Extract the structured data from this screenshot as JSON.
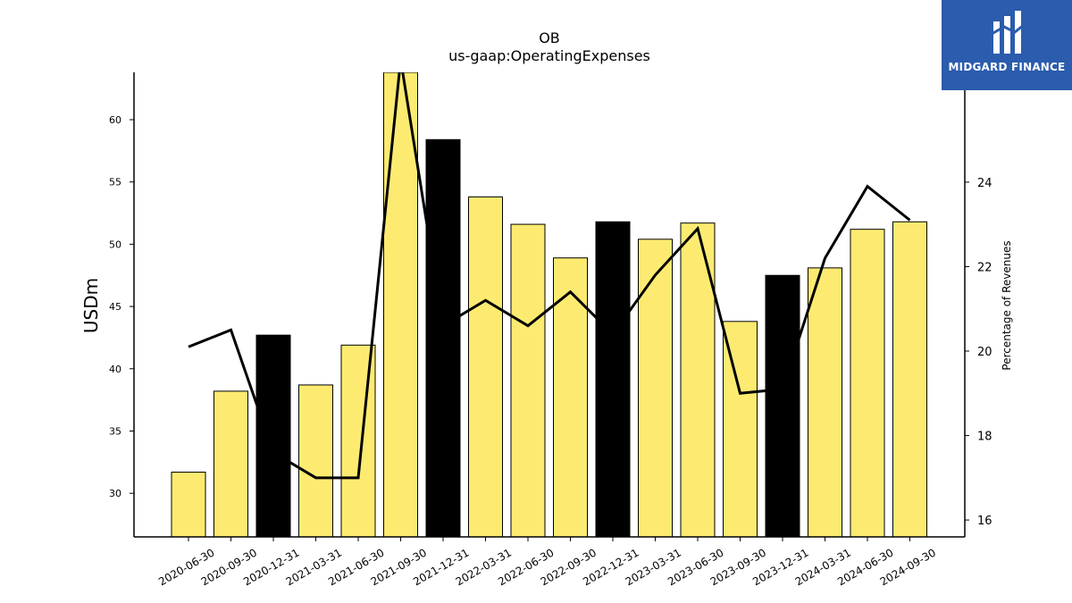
{
  "chart_data": {
    "type": "bar",
    "title": "OB",
    "subtitle": "us-gaap:OperatingExpenses",
    "ylabel": "USDm",
    "y2label": "Percentage of Revenues",
    "categories": [
      "2020-06-30",
      "2020-09-30",
      "2020-12-31",
      "2021-03-31",
      "2021-06-30",
      "2021-09-30",
      "2021-12-31",
      "2022-03-31",
      "2022-06-30",
      "2022-09-30",
      "2022-12-31",
      "2023-03-31",
      "2023-06-30",
      "2023-09-30",
      "2023-12-31",
      "2024-03-31",
      "2024-06-30",
      "2024-09-30"
    ],
    "series": [
      {
        "type": "bar",
        "axis": "left",
        "values": [
          31.7,
          38.2,
          42.7,
          38.7,
          41.9,
          64.0,
          58.4,
          53.8,
          51.6,
          48.9,
          51.8,
          50.4,
          51.7,
          43.8,
          47.5,
          48.1,
          51.2,
          51.8
        ],
        "colors": [
          "#fdeb71",
          "#fdeb71",
          "#000000",
          "#fdeb71",
          "#fdeb71",
          "#fdeb71",
          "#000000",
          "#fdeb71",
          "#fdeb71",
          "#fdeb71",
          "#000000",
          "#fdeb71",
          "#fdeb71",
          "#fdeb71",
          "#000000",
          "#fdeb71",
          "#fdeb71",
          "#fdeb71"
        ]
      },
      {
        "type": "line",
        "axis": "right",
        "color": "#000000",
        "values": [
          20.1,
          20.5,
          17.6,
          17.0,
          17.0,
          26.9,
          20.6,
          21.2,
          20.6,
          21.4,
          20.4,
          21.8,
          22.9,
          19.0,
          19.1,
          22.2,
          23.9,
          23.1
        ]
      }
    ],
    "ylim": [
      26.5,
      63.8
    ],
    "y2lim": [
      15.6,
      26.6
    ],
    "yticks": [
      30,
      35,
      40,
      45,
      50,
      55,
      60
    ],
    "y2ticks": [
      16,
      18,
      20,
      22,
      24
    ],
    "grid": false,
    "legend": "none"
  },
  "logo": {
    "text": "MIDGARD FINANCE",
    "color": "#2b5cad"
  }
}
